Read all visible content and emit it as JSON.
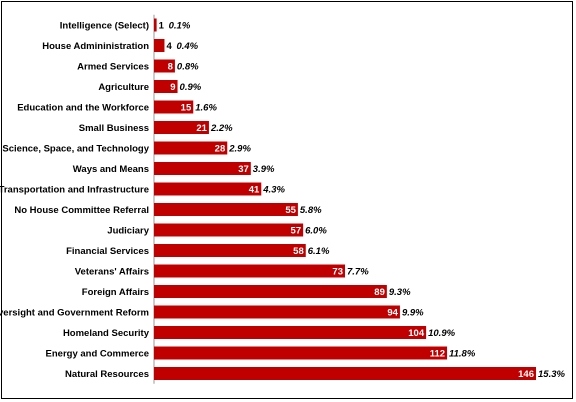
{
  "chart_data": {
    "type": "bar",
    "orientation": "horizontal",
    "bar_color": "#c00000",
    "grid": false,
    "legend": "none",
    "title": "",
    "xlabel": "",
    "ylabel": "",
    "xlim": [
      0,
      146
    ],
    "categories": [
      "Intelligence (Select)",
      "House Admininistration",
      "Armed Services",
      "Agriculture",
      "Education and the Workforce",
      "Small Business",
      "Science, Space, and Technology",
      "Ways and Means",
      "Transportation and Infrastructure",
      "No House Committee Referral",
      "Judiciary",
      "Financial Services",
      "Veterans' Affairs",
      "Foreign Affairs",
      "Oversight and Government Reform",
      "Homeland Security",
      "Energy and Commerce",
      "Natural Resources"
    ],
    "values": [
      1,
      4,
      8,
      9,
      15,
      21,
      28,
      37,
      41,
      55,
      57,
      58,
      73,
      89,
      94,
      104,
      112,
      146
    ],
    "percent_labels": [
      "0.1%",
      "0.4%",
      "0.8%",
      "0.9%",
      "1.6%",
      "2.2%",
      "2.9%",
      "3.9%",
      "4.3%",
      "5.8%",
      "6.0%",
      "6.1%",
      "7.7%",
      "9.3%",
      "9.9%",
      "10.9%",
      "11.8%",
      "15.3%"
    ]
  }
}
